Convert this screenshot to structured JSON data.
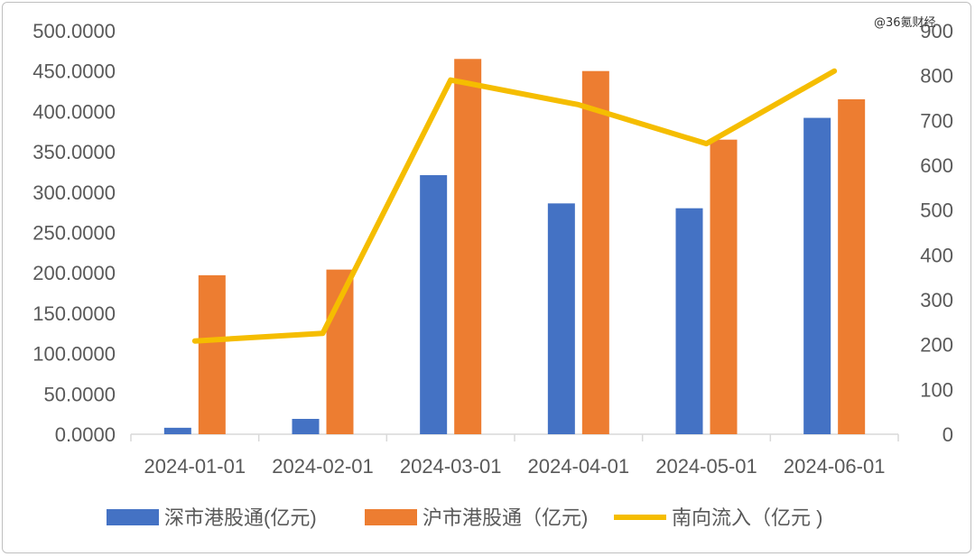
{
  "watermark": "@36氪财经",
  "colors": {
    "sz": "#4472c4",
    "sh": "#ed7d31",
    "south": "#f5bd00",
    "axis_text": "#595959",
    "axis_line": "#d9d9d9"
  },
  "chart_data": {
    "type": "bar",
    "categories": [
      "2024-01-01",
      "2024-02-01",
      "2024-03-01",
      "2024-04-01",
      "2024-05-01",
      "2024-06-01"
    ],
    "series": [
      {
        "name": "深市港股通(亿元)",
        "type": "bar",
        "axis": "left",
        "values": [
          8,
          19,
          321,
          286,
          280,
          392
        ]
      },
      {
        "name": "沪市港股通（亿元)",
        "type": "bar",
        "axis": "left",
        "values": [
          197,
          204,
          465,
          450,
          365,
          415
        ]
      },
      {
        "name": "南向流入（亿元 )",
        "type": "line",
        "axis": "right",
        "values": [
          208,
          225,
          790,
          735,
          648,
          810
        ]
      }
    ],
    "y_left": {
      "lim": [
        0,
        500
      ],
      "ticks": [
        "0.0000",
        "50.0000",
        "100.0000",
        "150.0000",
        "200.0000",
        "250.0000",
        "300.0000",
        "350.0000",
        "400.0000",
        "450.0000",
        "500.0000"
      ]
    },
    "y_right": {
      "lim": [
        0,
        900
      ],
      "ticks": [
        "0",
        "100",
        "200",
        "300",
        "400",
        "500",
        "600",
        "700",
        "800",
        "900"
      ]
    },
    "grid": false,
    "legend_position": "bottom"
  }
}
